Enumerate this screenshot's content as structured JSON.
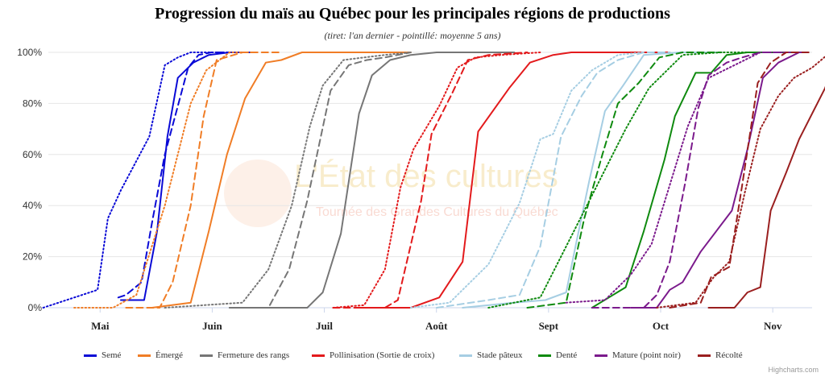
{
  "chart_data": {
    "type": "line",
    "title": "Progression du maïs au Québec pour les principales régions de productions",
    "subtitle": "(tiret: l'an dernier - pointillé: moyenne 5 ans)",
    "x_ticks": [
      "Mai",
      "Juin",
      "Juil",
      "Août",
      "Sept",
      "Oct",
      "Nov"
    ],
    "y_ticks": [
      "0%",
      "20%",
      "40%",
      "60%",
      "80%",
      "100%"
    ],
    "ylim": [
      0,
      100
    ],
    "x_unit": "week",
    "x_domain": [
      -2,
      27.5
    ],
    "grid": "horizontal",
    "legend_position": "bottom",
    "line_styles": {
      "current": "solid",
      "last_year": "dashed",
      "five_year_avg": "dotted"
    },
    "watermark": {
      "line1": "L'État des cultures",
      "line2": "Tournée des Grandes Cultures du Québec"
    },
    "credits": "Highcharts.com",
    "series": [
      {
        "name": "Semé",
        "color": "#0a0ad6",
        "current": {
          "x": [
            0.8,
            1.2,
            1.7,
            2.2,
            2.6,
            3.0,
            3.6,
            4.2,
            5.0,
            6.0
          ],
          "y": [
            3,
            3,
            3,
            30,
            67,
            90,
            96,
            99,
            100,
            100
          ]
        },
        "last_year": {
          "x": [
            0.7,
            1.0,
            1.6,
            2.0,
            2.5,
            3.4,
            3.8,
            4.3,
            5.0
          ],
          "y": [
            4,
            5,
            10,
            33,
            60,
            94,
            99,
            100,
            100
          ]
        },
        "avg5": {
          "x": [
            -2.2,
            -0.1,
            0.3,
            0.8,
            1.9,
            2.5,
            3.0,
            3.5,
            4.2,
            5.5
          ],
          "y": [
            0,
            7,
            35,
            46,
            67,
            95,
            98,
            100,
            100,
            100
          ]
        }
      },
      {
        "name": "Émergé",
        "color": "#f07d26",
        "current": {
          "x": [
            2.0,
            3.5,
            4.2,
            4.9,
            5.6,
            6.4,
            7.0,
            7.8,
            9.0,
            12.0
          ],
          "y": [
            0,
            2,
            30,
            60,
            82,
            96,
            97,
            100,
            100,
            100
          ]
        },
        "last_year": {
          "x": [
            1.0,
            2.3,
            2.8,
            3.5,
            4.0,
            4.5,
            5.5,
            7.0
          ],
          "y": [
            0,
            0,
            10,
            40,
            75,
            97,
            100,
            100
          ]
        },
        "avg5": {
          "x": [
            -1.0,
            0.5,
            1.4,
            2.5,
            3.5,
            4.1,
            5.0,
            6.0
          ],
          "y": [
            0,
            0,
            5,
            40,
            80,
            93,
            100,
            100
          ]
        }
      },
      {
        "name": "Fermeture des rangs",
        "color": "#767676",
        "current": {
          "x": [
            5.0,
            8.0,
            8.6,
            9.3,
            10.0,
            10.5,
            11.2,
            12.0,
            13.0,
            14.0,
            16.0
          ],
          "y": [
            0,
            0,
            6,
            29,
            76,
            91,
            97,
            99,
            100,
            100,
            100
          ]
        },
        "last_year": {
          "x": [
            5.0,
            6.5,
            7.3,
            8.0,
            8.9,
            9.6,
            10.3,
            11.0,
            12.0
          ],
          "y": [
            0,
            0,
            15,
            42,
            85,
            95,
            97,
            98,
            100
          ]
        },
        "avg5": {
          "x": [
            2.5,
            5.5,
            6.5,
            7.4,
            8.1,
            8.6,
            9.4,
            10.2,
            11.0,
            12.0
          ],
          "y": [
            0,
            2,
            15,
            40,
            71,
            87,
            97,
            98,
            99,
            100
          ]
        }
      },
      {
        "name": "Pollinisation (Sortie de croix)",
        "color": "#e31a1c",
        "current": {
          "x": [
            10.0,
            12.0,
            13.1,
            14.0,
            14.6,
            15.8,
            16.6,
            17.5,
            18.2,
            19.5,
            22.0
          ],
          "y": [
            0,
            0,
            4,
            18,
            69,
            86,
            96,
            99,
            100,
            100,
            100
          ]
        },
        "last_year": {
          "x": [
            9.0,
            11.0,
            11.5,
            12.4,
            12.8,
            13.6,
            14.2,
            15.0,
            16.5
          ],
          "y": [
            0,
            0,
            3,
            42,
            68,
            84,
            97,
            99,
            100
          ]
        },
        "avg5": {
          "x": [
            9.0,
            10.2,
            11.0,
            11.6,
            12.1,
            13.1,
            13.8,
            14.5,
            15.5,
            17.0
          ],
          "y": [
            0,
            1,
            15,
            47,
            62,
            79,
            94,
            98,
            99,
            100
          ]
        }
      },
      {
        "name": "Stade pâteux",
        "color": "#a6cee3",
        "current": {
          "x": [
            14.0,
            16.0,
            17.2,
            18.0,
            18.4,
            18.9,
            19.5,
            20.2,
            21.0,
            22.4,
            24.0
          ],
          "y": [
            0,
            2,
            3,
            6,
            26,
            50,
            77,
            87,
            99,
            100,
            100
          ]
        },
        "last_year": {
          "x": [
            13.0,
            15.0,
            16.2,
            17.0,
            17.8,
            18.6,
            19.2,
            20.0,
            21.0,
            22.0
          ],
          "y": [
            0,
            3,
            5,
            24,
            67,
            83,
            92,
            97,
            100,
            100
          ]
        },
        "avg5": {
          "x": [
            12.0,
            13.5,
            15.0,
            16.2,
            17.0,
            17.5,
            18.2,
            19.0,
            20.0,
            21.0
          ],
          "y": [
            0,
            2,
            17,
            41,
            66,
            68,
            85,
            93,
            99,
            100
          ]
        }
      },
      {
        "name": "Denté",
        "color": "#0f8a0f",
        "current": {
          "x": [
            19.0,
            20.3,
            21.0,
            21.8,
            22.2,
            23.0,
            23.6,
            24.2,
            25.0,
            27.0
          ],
          "y": [
            0,
            8,
            30,
            58,
            75,
            92,
            92,
            99,
            100,
            100
          ]
        },
        "last_year": {
          "x": [
            16.5,
            18.0,
            18.7,
            19.4,
            20.0,
            20.8,
            21.6,
            22.5,
            24.0
          ],
          "y": [
            0,
            2,
            35,
            60,
            80,
            88,
            98,
            100,
            100
          ]
        },
        "avg5": {
          "x": [
            15.0,
            17.0,
            18.5,
            19.5,
            20.3,
            21.2,
            22.5,
            24.0,
            25.0
          ],
          "y": [
            0,
            4,
            34,
            54,
            70,
            86,
            99,
            100,
            100
          ]
        }
      },
      {
        "name": "Mature (point noir)",
        "color": "#7b1a8c",
        "current": {
          "x": [
            20.5,
            21.5,
            22.0,
            22.5,
            23.2,
            24.4,
            25.0,
            25.6,
            26.2,
            27.0,
            27.3
          ],
          "y": [
            0,
            0,
            7,
            10,
            22,
            38,
            62,
            90,
            96,
            100,
            100
          ]
        },
        "last_year": {
          "x": [
            19.0,
            21.0,
            21.5,
            22.0,
            22.6,
            23.1,
            23.5,
            24.2,
            24.8,
            25.5,
            27.3
          ],
          "y": [
            0,
            0,
            5,
            18,
            49,
            78,
            91,
            96,
            98,
            100,
            100
          ]
        },
        "avg5": {
          "x": [
            18.0,
            19.5,
            20.5,
            21.3,
            22.0,
            22.7,
            23.5,
            24.5,
            25.5,
            27.0
          ],
          "y": [
            2,
            3,
            13,
            25,
            48,
            71,
            90,
            95,
            100,
            100
          ]
        }
      },
      {
        "name": "Récolté",
        "color": "#9a1f1f",
        "current": {
          "x": [
            23.5,
            24.5,
            25.0,
            25.5,
            25.9,
            26.5,
            27.0,
            27.5,
            28.0,
            28.5
          ],
          "y": [
            0,
            0,
            6,
            8,
            38,
            53,
            66,
            76,
            86,
            100
          ]
        },
        "last_year": {
          "x": [
            22.0,
            23.2,
            23.6,
            24.3,
            24.8,
            25.4,
            25.9,
            26.5,
            27.5
          ],
          "y": [
            0,
            2,
            12,
            16,
            48,
            88,
            96,
            100,
            100
          ]
        },
        "avg5": {
          "x": [
            21.5,
            23.0,
            23.7,
            24.3,
            24.9,
            25.5,
            26.2,
            26.8,
            27.5,
            28.2
          ],
          "y": [
            0,
            2,
            12,
            18,
            45,
            70,
            83,
            90,
            94,
            100
          ]
        }
      }
    ]
  }
}
